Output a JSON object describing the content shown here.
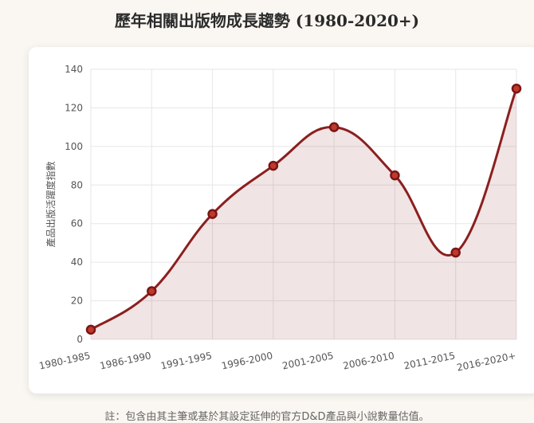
{
  "title": "歷年相關出版物成長趨勢 (1980-2020+)",
  "footnote": "註：包含由其主筆或基於其設定延伸的官方D&D產品與小說數量估值。",
  "colors": {
    "line": "#8b1f1f",
    "fill": "rgba(139,31,31,0.12)",
    "point_fill": "#c0392b",
    "point_stroke": "#7a1515",
    "grid": "#e6e6e6"
  },
  "chart_data": {
    "type": "line",
    "title": "歷年相關出版物成長趨勢 (1980-2020+)",
    "xlabel": "",
    "ylabel": "產品出版活躍度指數",
    "categories": [
      "1980-1985",
      "1986-1990",
      "1991-1995",
      "1996-2000",
      "2001-2005",
      "2006-2010",
      "2011-2015",
      "2016-2020+"
    ],
    "series": [
      {
        "values": [
          5,
          25,
          65,
          90,
          110,
          85,
          45,
          130
        ]
      }
    ],
    "ylim": [
      0,
      140
    ],
    "yticks": [
      0,
      20,
      40,
      60,
      80,
      100,
      120,
      140
    ],
    "grid": true,
    "area_fill": true,
    "smooth": true
  }
}
